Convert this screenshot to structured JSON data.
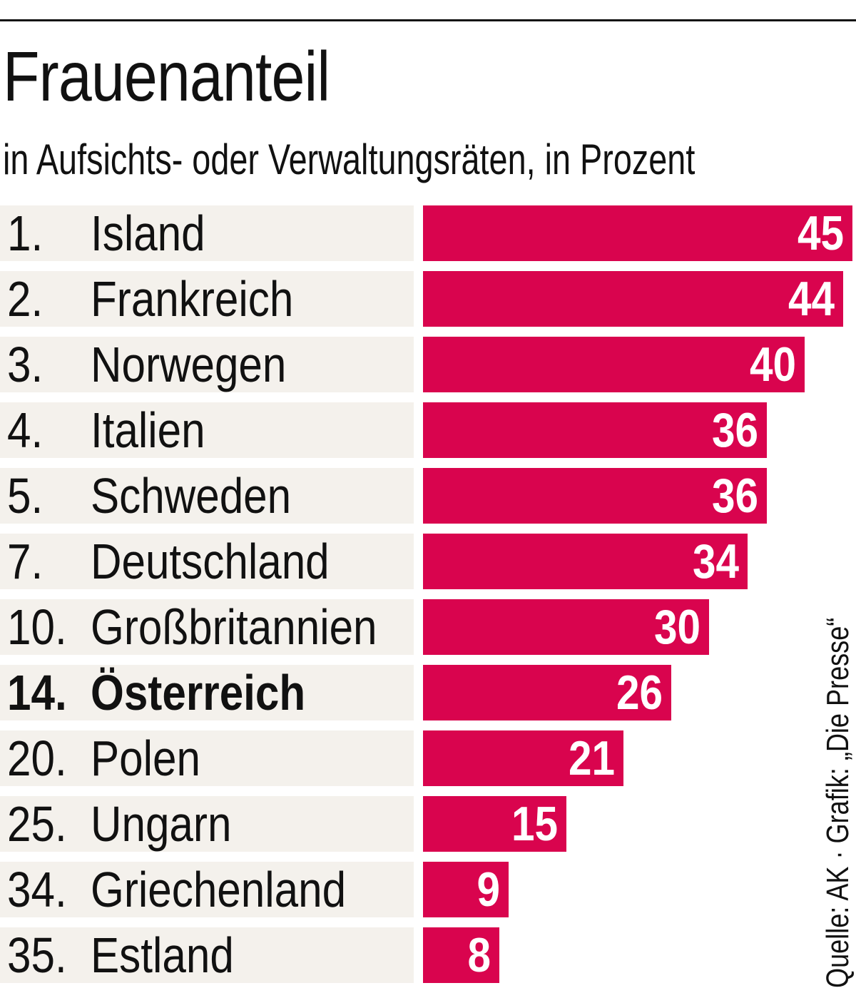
{
  "title": "Frauenanteil",
  "subtitle": "in Aufsichts- oder Verwaltungsräten, in Prozent",
  "source": "Quelle: AK · Grafik: „Die Presse“",
  "colors": {
    "bar": "#d9044e",
    "label_bg": "#f4f1ec",
    "value_text": "#ffffff"
  },
  "chart_data": {
    "type": "bar",
    "orientation": "horizontal",
    "title": "Frauenanteil",
    "subtitle": "in Aufsichts- oder Verwaltungsräten, in Prozent",
    "categories": [
      "Island",
      "Frankreich",
      "Norwegen",
      "Italien",
      "Schweden",
      "Deutschland",
      "Großbritannien",
      "Österreich",
      "Polen",
      "Ungarn",
      "Griechenland",
      "Estland"
    ],
    "ranks": [
      "1.",
      "2.",
      "3.",
      "4.",
      "5.",
      "7.",
      "10.",
      "14.",
      "20.",
      "25.",
      "34.",
      "35."
    ],
    "values": [
      45,
      44,
      40,
      36,
      36,
      34,
      30,
      26,
      21,
      15,
      9,
      8
    ],
    "highlight": "Österreich",
    "xlim": [
      0,
      45
    ],
    "grid": false,
    "legend": "none",
    "source": "Quelle: AK · Grafik: „Die Presse“"
  }
}
